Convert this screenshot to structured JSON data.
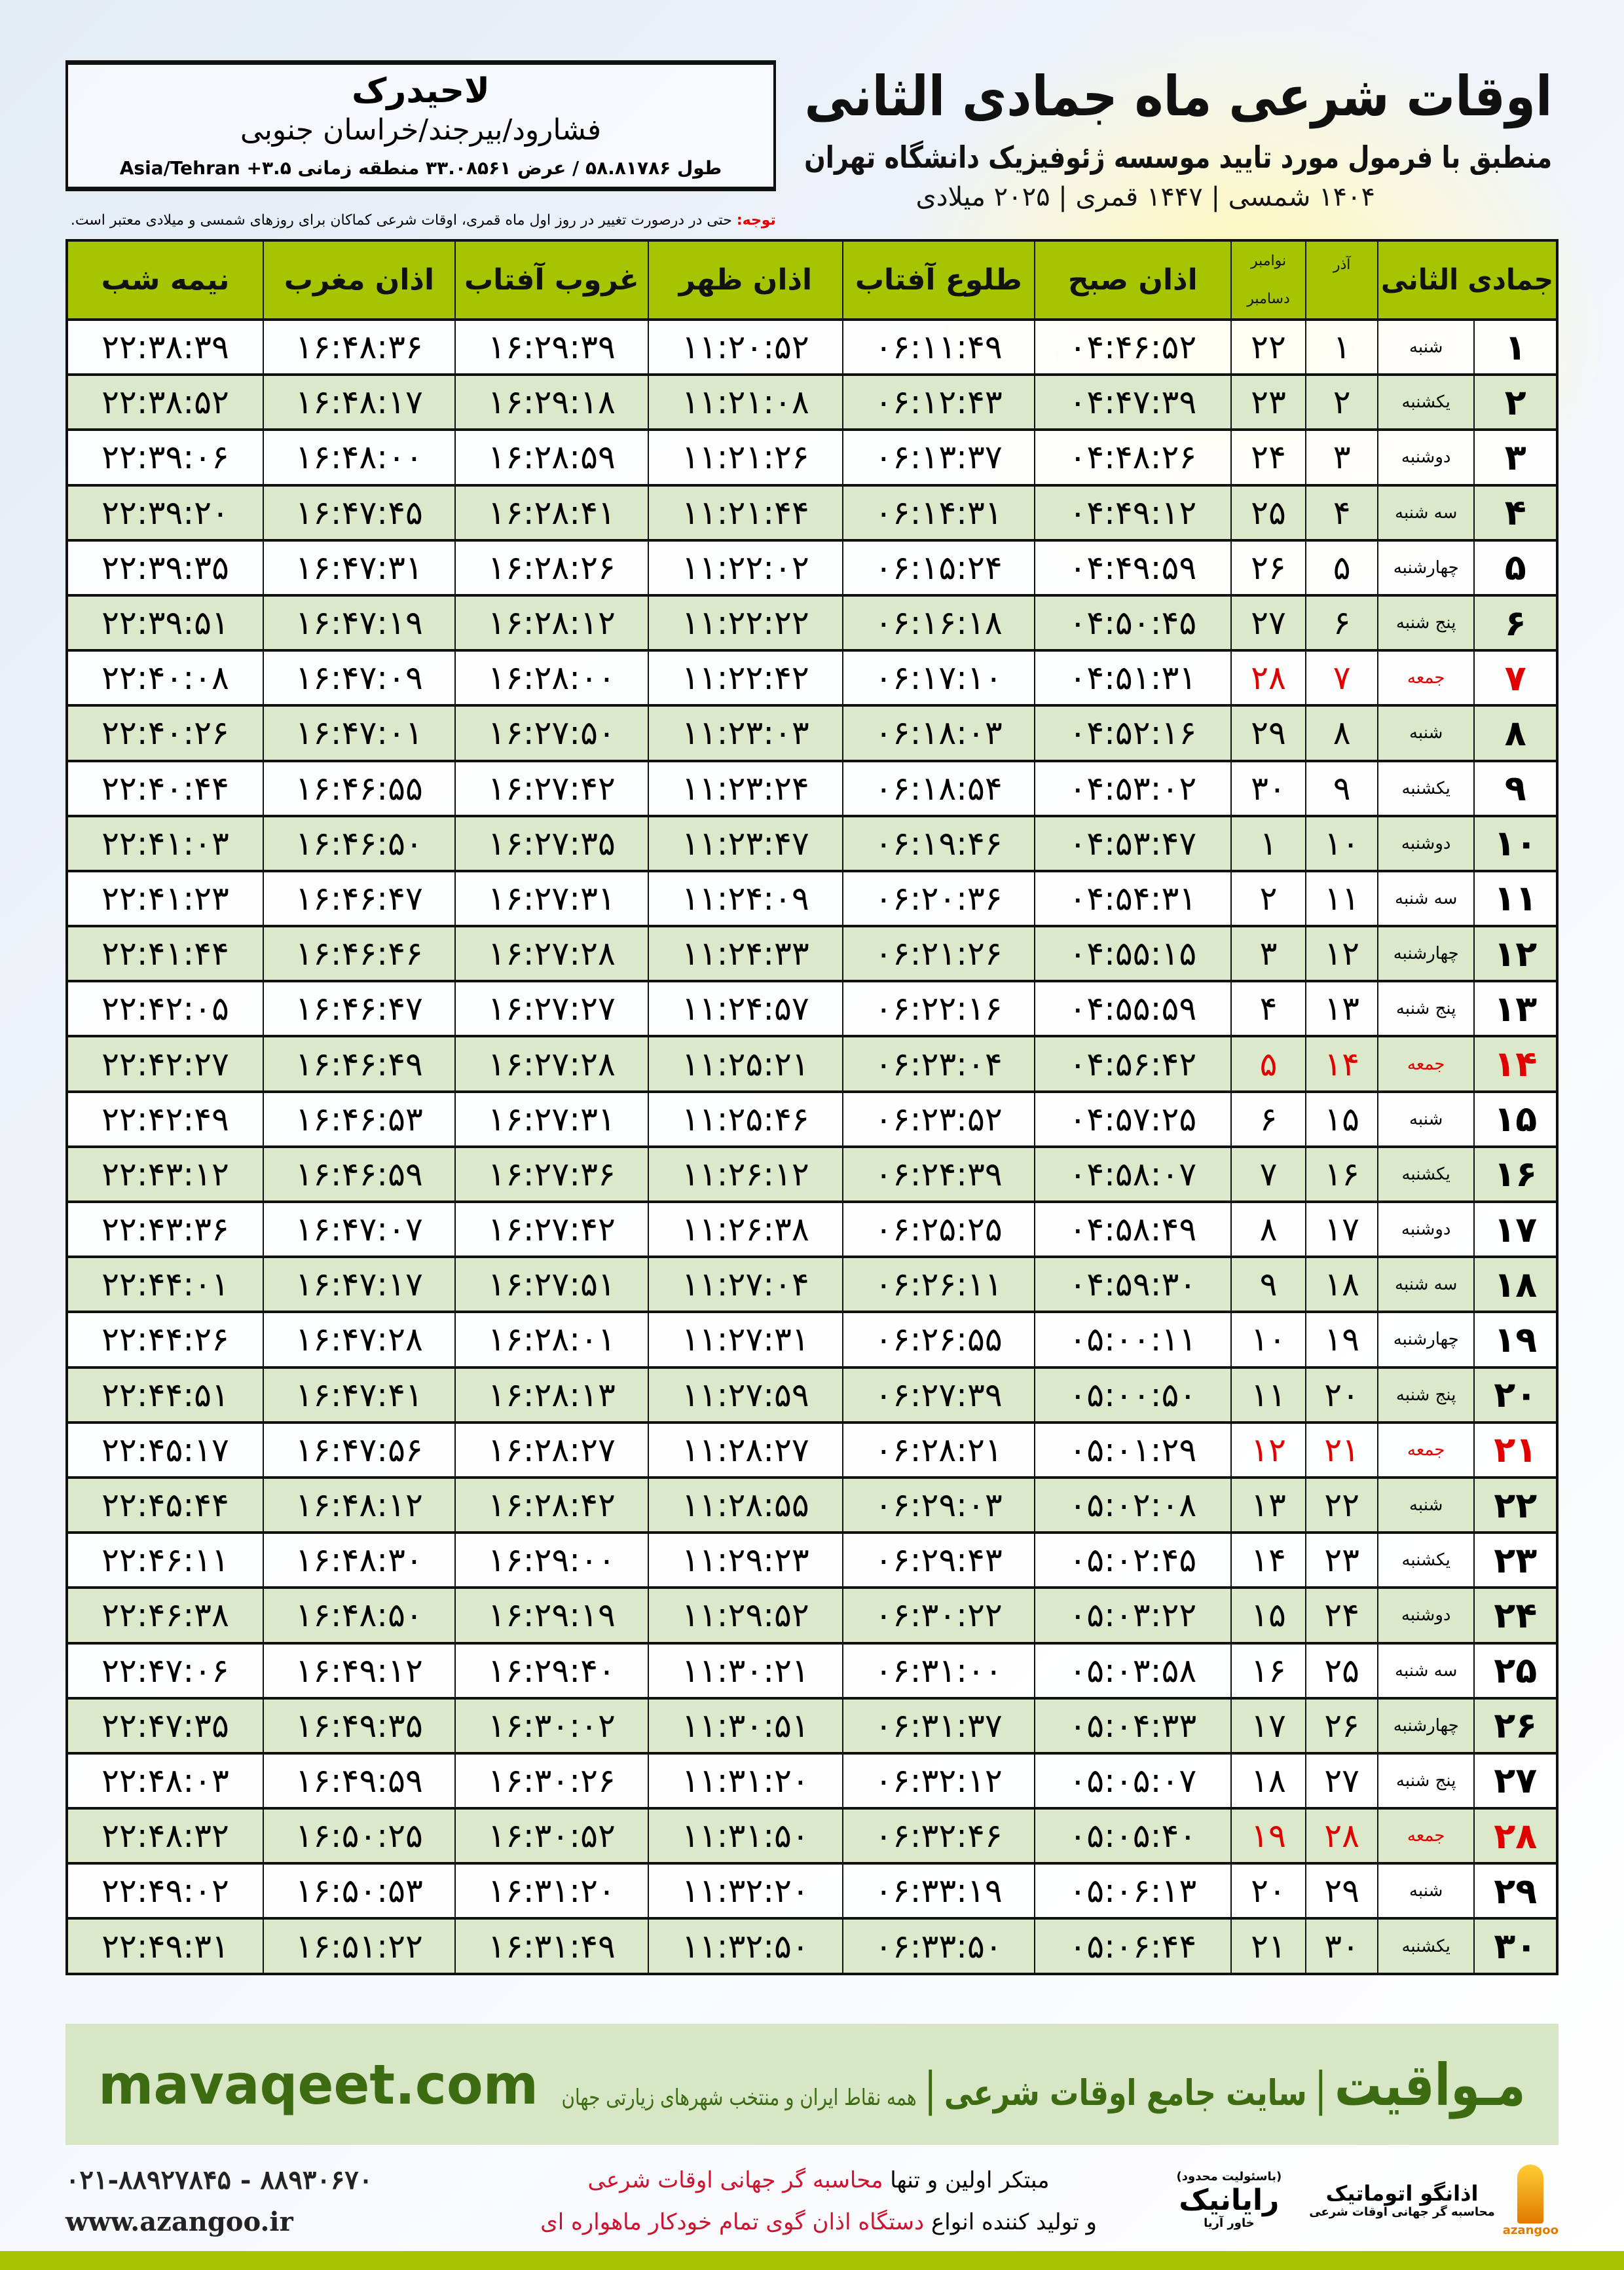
{
  "header": {
    "title": "اوقات شرعی ماه جمادی الثانی",
    "subtitle": "منطبق با فرمول مورد تایید موسسه ژئوفیزیک دانشگاه تهران",
    "years": "۱۴۰۴ شمسی | ۱۴۴۷ قمری | ۲۰۲۵ میلادی"
  },
  "location": {
    "name": "لاحیدرک",
    "path": "فشارود/بیرجند/خراسان جنوبی",
    "coords": "طول ۵۸.۸۱۷۸۶ / عرض ۳۳.۰۸۵۶۱ منطقه زمانی ۳.۵+ Asia/Tehran"
  },
  "note": {
    "label": "توجه:",
    "text": " حتی در درصورت تغییر در روز اول ماه قمری، اوقات شرعی کماکان برای روزهای شمسی و میلادی معتبر است."
  },
  "colors": {
    "header_green": "#a6c400",
    "row_green": "#dbe8c9",
    "holiday_red": "#e00000",
    "brand_green": "#3d6b12"
  },
  "table": {
    "columns": {
      "day": "جمادی الثانی",
      "azar": "آذر",
      "nov": "نوامبر",
      "dec": "دسامبر",
      "fajr": "اذان صبح",
      "sunrise": "طلوع آفتاب",
      "dhuhr": "اذان ظهر",
      "sunset": "غروب آفتاب",
      "maghrib": "اذان مغرب",
      "midnight": "نیمه شب"
    },
    "rows": [
      {
        "d": "۱",
        "w": "شنبه",
        "az": "۱",
        "nd": "۲۲",
        "t": [
          "۰۴:۴۶:۵۲",
          "۰۶:۱۱:۴۹",
          "۱۱:۲۰:۵۲",
          "۱۶:۲۹:۳۹",
          "۱۶:۴۸:۳۶",
          "۲۲:۳۸:۳۹"
        ],
        "holiday": false
      },
      {
        "d": "۲",
        "w": "یکشنبه",
        "az": "۲",
        "nd": "۲۳",
        "t": [
          "۰۴:۴۷:۳۹",
          "۰۶:۱۲:۴۳",
          "۱۱:۲۱:۰۸",
          "۱۶:۲۹:۱۸",
          "۱۶:۴۸:۱۷",
          "۲۲:۳۸:۵۲"
        ],
        "holiday": false
      },
      {
        "d": "۳",
        "w": "دوشنبه",
        "az": "۳",
        "nd": "۲۴",
        "t": [
          "۰۴:۴۸:۲۶",
          "۰۶:۱۳:۳۷",
          "۱۱:۲۱:۲۶",
          "۱۶:۲۸:۵۹",
          "۱۶:۴۸:۰۰",
          "۲۲:۳۹:۰۶"
        ],
        "holiday": false
      },
      {
        "d": "۴",
        "w": "سه شنبه",
        "az": "۴",
        "nd": "۲۵",
        "t": [
          "۰۴:۴۹:۱۲",
          "۰۶:۱۴:۳۱",
          "۱۱:۲۱:۴۴",
          "۱۶:۲۸:۴۱",
          "۱۶:۴۷:۴۵",
          "۲۲:۳۹:۲۰"
        ],
        "holiday": false
      },
      {
        "d": "۵",
        "w": "چهارشنبه",
        "az": "۵",
        "nd": "۲۶",
        "t": [
          "۰۴:۴۹:۵۹",
          "۰۶:۱۵:۲۴",
          "۱۱:۲۲:۰۲",
          "۱۶:۲۸:۲۶",
          "۱۶:۴۷:۳۱",
          "۲۲:۳۹:۳۵"
        ],
        "holiday": false
      },
      {
        "d": "۶",
        "w": "پنج شنبه",
        "az": "۶",
        "nd": "۲۷",
        "t": [
          "۰۴:۵۰:۴۵",
          "۰۶:۱۶:۱۸",
          "۱۱:۲۲:۲۲",
          "۱۶:۲۸:۱۲",
          "۱۶:۴۷:۱۹",
          "۲۲:۳۹:۵۱"
        ],
        "holiday": false
      },
      {
        "d": "۷",
        "w": "جمعه",
        "az": "۷",
        "nd": "۲۸",
        "t": [
          "۰۴:۵۱:۳۱",
          "۰۶:۱۷:۱۰",
          "۱۱:۲۲:۴۲",
          "۱۶:۲۸:۰۰",
          "۱۶:۴۷:۰۹",
          "۲۲:۴۰:۰۸"
        ],
        "holiday": true
      },
      {
        "d": "۸",
        "w": "شنبه",
        "az": "۸",
        "nd": "۲۹",
        "t": [
          "۰۴:۵۲:۱۶",
          "۰۶:۱۸:۰۳",
          "۱۱:۲۳:۰۳",
          "۱۶:۲۷:۵۰",
          "۱۶:۴۷:۰۱",
          "۲۲:۴۰:۲۶"
        ],
        "holiday": false
      },
      {
        "d": "۹",
        "w": "یکشنبه",
        "az": "۹",
        "nd": "۳۰",
        "t": [
          "۰۴:۵۳:۰۲",
          "۰۶:۱۸:۵۴",
          "۱۱:۲۳:۲۴",
          "۱۶:۲۷:۴۲",
          "۱۶:۴۶:۵۵",
          "۲۲:۴۰:۴۴"
        ],
        "holiday": false
      },
      {
        "d": "۱۰",
        "w": "دوشنبه",
        "az": "۱۰",
        "nd": "۱",
        "t": [
          "۰۴:۵۳:۴۷",
          "۰۶:۱۹:۴۶",
          "۱۱:۲۳:۴۷",
          "۱۶:۲۷:۳۵",
          "۱۶:۴۶:۵۰",
          "۲۲:۴۱:۰۳"
        ],
        "holiday": false
      },
      {
        "d": "۱۱",
        "w": "سه شنبه",
        "az": "۱۱",
        "nd": "۲",
        "t": [
          "۰۴:۵۴:۳۱",
          "۰۶:۲۰:۳۶",
          "۱۱:۲۴:۰۹",
          "۱۶:۲۷:۳۱",
          "۱۶:۴۶:۴۷",
          "۲۲:۴۱:۲۳"
        ],
        "holiday": false
      },
      {
        "d": "۱۲",
        "w": "چهارشنبه",
        "az": "۱۲",
        "nd": "۳",
        "t": [
          "۰۴:۵۵:۱۵",
          "۰۶:۲۱:۲۶",
          "۱۱:۲۴:۳۳",
          "۱۶:۲۷:۲۸",
          "۱۶:۴۶:۴۶",
          "۲۲:۴۱:۴۴"
        ],
        "holiday": false
      },
      {
        "d": "۱۳",
        "w": "پنج شنبه",
        "az": "۱۳",
        "nd": "۴",
        "t": [
          "۰۴:۵۵:۵۹",
          "۰۶:۲۲:۱۶",
          "۱۱:۲۴:۵۷",
          "۱۶:۲۷:۲۷",
          "۱۶:۴۶:۴۷",
          "۲۲:۴۲:۰۵"
        ],
        "holiday": false
      },
      {
        "d": "۱۴",
        "w": "جمعه",
        "az": "۱۴",
        "nd": "۵",
        "t": [
          "۰۴:۵۶:۴۲",
          "۰۶:۲۳:۰۴",
          "۱۱:۲۵:۲۱",
          "۱۶:۲۷:۲۸",
          "۱۶:۴۶:۴۹",
          "۲۲:۴۲:۲۷"
        ],
        "holiday": true
      },
      {
        "d": "۱۵",
        "w": "شنبه",
        "az": "۱۵",
        "nd": "۶",
        "t": [
          "۰۴:۵۷:۲۵",
          "۰۶:۲۳:۵۲",
          "۱۱:۲۵:۴۶",
          "۱۶:۲۷:۳۱",
          "۱۶:۴۶:۵۳",
          "۲۲:۴۲:۴۹"
        ],
        "holiday": false
      },
      {
        "d": "۱۶",
        "w": "یکشنبه",
        "az": "۱۶",
        "nd": "۷",
        "t": [
          "۰۴:۵۸:۰۷",
          "۰۶:۲۴:۳۹",
          "۱۱:۲۶:۱۲",
          "۱۶:۲۷:۳۶",
          "۱۶:۴۶:۵۹",
          "۲۲:۴۳:۱۲"
        ],
        "holiday": false
      },
      {
        "d": "۱۷",
        "w": "دوشنبه",
        "az": "۱۷",
        "nd": "۸",
        "t": [
          "۰۴:۵۸:۴۹",
          "۰۶:۲۵:۲۵",
          "۱۱:۲۶:۳۸",
          "۱۶:۲۷:۴۲",
          "۱۶:۴۷:۰۷",
          "۲۲:۴۳:۳۶"
        ],
        "holiday": false
      },
      {
        "d": "۱۸",
        "w": "سه شنبه",
        "az": "۱۸",
        "nd": "۹",
        "t": [
          "۰۴:۵۹:۳۰",
          "۰۶:۲۶:۱۱",
          "۱۱:۲۷:۰۴",
          "۱۶:۲۷:۵۱",
          "۱۶:۴۷:۱۷",
          "۲۲:۴۴:۰۱"
        ],
        "holiday": false
      },
      {
        "d": "۱۹",
        "w": "چهارشنبه",
        "az": "۱۹",
        "nd": "۱۰",
        "t": [
          "۰۵:۰۰:۱۱",
          "۰۶:۲۶:۵۵",
          "۱۱:۲۷:۳۱",
          "۱۶:۲۸:۰۱",
          "۱۶:۴۷:۲۸",
          "۲۲:۴۴:۲۶"
        ],
        "holiday": false
      },
      {
        "d": "۲۰",
        "w": "پنج شنبه",
        "az": "۲۰",
        "nd": "۱۱",
        "t": [
          "۰۵:۰۰:۵۰",
          "۰۶:۲۷:۳۹",
          "۱۱:۲۷:۵۹",
          "۱۶:۲۸:۱۳",
          "۱۶:۴۷:۴۱",
          "۲۲:۴۴:۵۱"
        ],
        "holiday": false
      },
      {
        "d": "۲۱",
        "w": "جمعه",
        "az": "۲۱",
        "nd": "۱۲",
        "t": [
          "۰۵:۰۱:۲۹",
          "۰۶:۲۸:۲۱",
          "۱۱:۲۸:۲۷",
          "۱۶:۲۸:۲۷",
          "۱۶:۴۷:۵۶",
          "۲۲:۴۵:۱۷"
        ],
        "holiday": true
      },
      {
        "d": "۲۲",
        "w": "شنبه",
        "az": "۲۲",
        "nd": "۱۳",
        "t": [
          "۰۵:۰۲:۰۸",
          "۰۶:۲۹:۰۳",
          "۱۱:۲۸:۵۵",
          "۱۶:۲۸:۴۲",
          "۱۶:۴۸:۱۲",
          "۲۲:۴۵:۴۴"
        ],
        "holiday": false
      },
      {
        "d": "۲۳",
        "w": "یکشنبه",
        "az": "۲۳",
        "nd": "۱۴",
        "t": [
          "۰۵:۰۲:۴۵",
          "۰۶:۲۹:۴۳",
          "۱۱:۲۹:۲۳",
          "۱۶:۲۹:۰۰",
          "۱۶:۴۸:۳۰",
          "۲۲:۴۶:۱۱"
        ],
        "holiday": false
      },
      {
        "d": "۲۴",
        "w": "دوشنبه",
        "az": "۲۴",
        "nd": "۱۵",
        "t": [
          "۰۵:۰۳:۲۲",
          "۰۶:۳۰:۲۲",
          "۱۱:۲۹:۵۲",
          "۱۶:۲۹:۱۹",
          "۱۶:۴۸:۵۰",
          "۲۲:۴۶:۳۸"
        ],
        "holiday": false
      },
      {
        "d": "۲۵",
        "w": "سه شنبه",
        "az": "۲۵",
        "nd": "۱۶",
        "t": [
          "۰۵:۰۳:۵۸",
          "۰۶:۳۱:۰۰",
          "۱۱:۳۰:۲۱",
          "۱۶:۲۹:۴۰",
          "۱۶:۴۹:۱۲",
          "۲۲:۴۷:۰۶"
        ],
        "holiday": false
      },
      {
        "d": "۲۶",
        "w": "چهارشنبه",
        "az": "۲۶",
        "nd": "۱۷",
        "t": [
          "۰۵:۰۴:۳۳",
          "۰۶:۳۱:۳۷",
          "۱۱:۳۰:۵۱",
          "۱۶:۳۰:۰۲",
          "۱۶:۴۹:۳۵",
          "۲۲:۴۷:۳۵"
        ],
        "holiday": false
      },
      {
        "d": "۲۷",
        "w": "پنج شنبه",
        "az": "۲۷",
        "nd": "۱۸",
        "t": [
          "۰۵:۰۵:۰۷",
          "۰۶:۳۲:۱۲",
          "۱۱:۳۱:۲۰",
          "۱۶:۳۰:۲۶",
          "۱۶:۴۹:۵۹",
          "۲۲:۴۸:۰۳"
        ],
        "holiday": false
      },
      {
        "d": "۲۸",
        "w": "جمعه",
        "az": "۲۸",
        "nd": "۱۹",
        "t": [
          "۰۵:۰۵:۴۰",
          "۰۶:۳۲:۴۶",
          "۱۱:۳۱:۵۰",
          "۱۶:۳۰:۵۲",
          "۱۶:۵۰:۲۵",
          "۲۲:۴۸:۳۲"
        ],
        "holiday": true
      },
      {
        "d": "۲۹",
        "w": "شنبه",
        "az": "۲۹",
        "nd": "۲۰",
        "t": [
          "۰۵:۰۶:۱۳",
          "۰۶:۳۳:۱۹",
          "۱۱:۳۲:۲۰",
          "۱۶:۳۱:۲۰",
          "۱۶:۵۰:۵۳",
          "۲۲:۴۹:۰۲"
        ],
        "holiday": false
      },
      {
        "d": "۳۰",
        "w": "یکشنبه",
        "az": "۳۰",
        "nd": "۲۱",
        "t": [
          "۰۵:۰۶:۴۴",
          "۰۶:۳۳:۵۰",
          "۱۱:۳۲:۵۰",
          "۱۶:۳۱:۴۹",
          "۱۶:۵۱:۲۲",
          "۲۲:۴۹:۳۱"
        ],
        "holiday": false
      }
    ]
  },
  "footer": {
    "brand": "مـواقیت",
    "brand_sub": "سایت جامع اوقات شرعی",
    "brand_sub2": "همه نقاط ایران و منتخب شهرهای زیارتی جهان",
    "separator": "|",
    "site": "mavaqeet.com",
    "logo1_name": "اذانگو اتوماتیک",
    "logo1_sub": "محاسبه گر جهانی اوقات شرعی",
    "logo1_latin": "azangoo",
    "logo2_note": "(باسئولیت محدود)",
    "logo2_name": "رایانیک",
    "logo2_sub": "خاور آریا",
    "promo1_a": "مبتکر اولین و تنها ",
    "promo1_b": "محاسبه گر جهانی اوقات شرعی",
    "promo2_a": "و تولید کننده انواع ",
    "promo2_b": "دستگاه اذان گوی تمام خودکار ماهواره ای",
    "phone": "۰۲۱-۸۸۹۲۷۸۴۵ - ۸۸۹۳۰۶۷۰",
    "web": "www.azangoo.ir"
  }
}
